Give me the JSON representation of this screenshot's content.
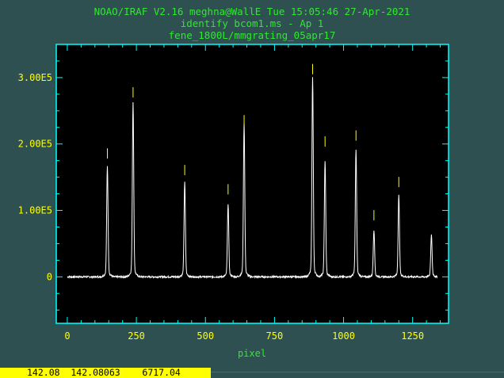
{
  "header": {
    "line1": "NOAO/IRAF V2.16 meghna@WallE Tue 15:05:46 27-Apr-2021",
    "line2": "identify bcom1.ms - Ap 1",
    "line3": "fene_1800L/mmgrating_05apr17"
  },
  "colors": {
    "background": "#2f5050",
    "header_text": "#32e632",
    "axes": "#00ffff",
    "tick_labels": "#ffff00",
    "spectrum": "#ffffff",
    "line_marks": "#ffff00",
    "status_bg": "#ffff00",
    "status_rule": "#cc3333"
  },
  "chart_data": {
    "type": "line",
    "title": "",
    "xlabel": "pixel",
    "ylabel": "",
    "xlim": [
      -40,
      1380
    ],
    "ylim": [
      -70000,
      350000
    ],
    "xticks": [
      0,
      250,
      500,
      750,
      1000,
      1250
    ],
    "xtick_labels": [
      "0",
      "250",
      "500",
      "750",
      "1000",
      "1250"
    ],
    "yticks": [
      0,
      100000,
      200000,
      300000
    ],
    "ytick_labels": [
      "0",
      "1.00E5",
      "2.00E5",
      "3.00E5"
    ],
    "grid": false,
    "baseline": 0,
    "peaks": [
      {
        "x": 145,
        "y": 160000
      },
      {
        "x": 238,
        "y": 253000
      },
      {
        "x": 425,
        "y": 138000
      },
      {
        "x": 582,
        "y": 106000
      },
      {
        "x": 640,
        "y": 223000
      },
      {
        "x": 888,
        "y": 290000
      },
      {
        "x": 933,
        "y": 168000
      },
      {
        "x": 1045,
        "y": 184000
      },
      {
        "x": 1110,
        "y": 68000
      },
      {
        "x": 1200,
        "y": 118000
      },
      {
        "x": 1318,
        "y": 61000
      }
    ],
    "line_marks": [
      {
        "x": 145,
        "y": 178000
      },
      {
        "x": 238,
        "y": 270000
      },
      {
        "x": 425,
        "y": 153000
      },
      {
        "x": 582,
        "y": 124000
      },
      {
        "x": 640,
        "y": 228000
      },
      {
        "x": 888,
        "y": 305000
      },
      {
        "x": 933,
        "y": 196000
      },
      {
        "x": 1045,
        "y": 205000
      },
      {
        "x": 1110,
        "y": 85000
      },
      {
        "x": 1200,
        "y": 135000
      }
    ]
  },
  "status": {
    "readout": "142.08  142.08063    6717.04"
  }
}
